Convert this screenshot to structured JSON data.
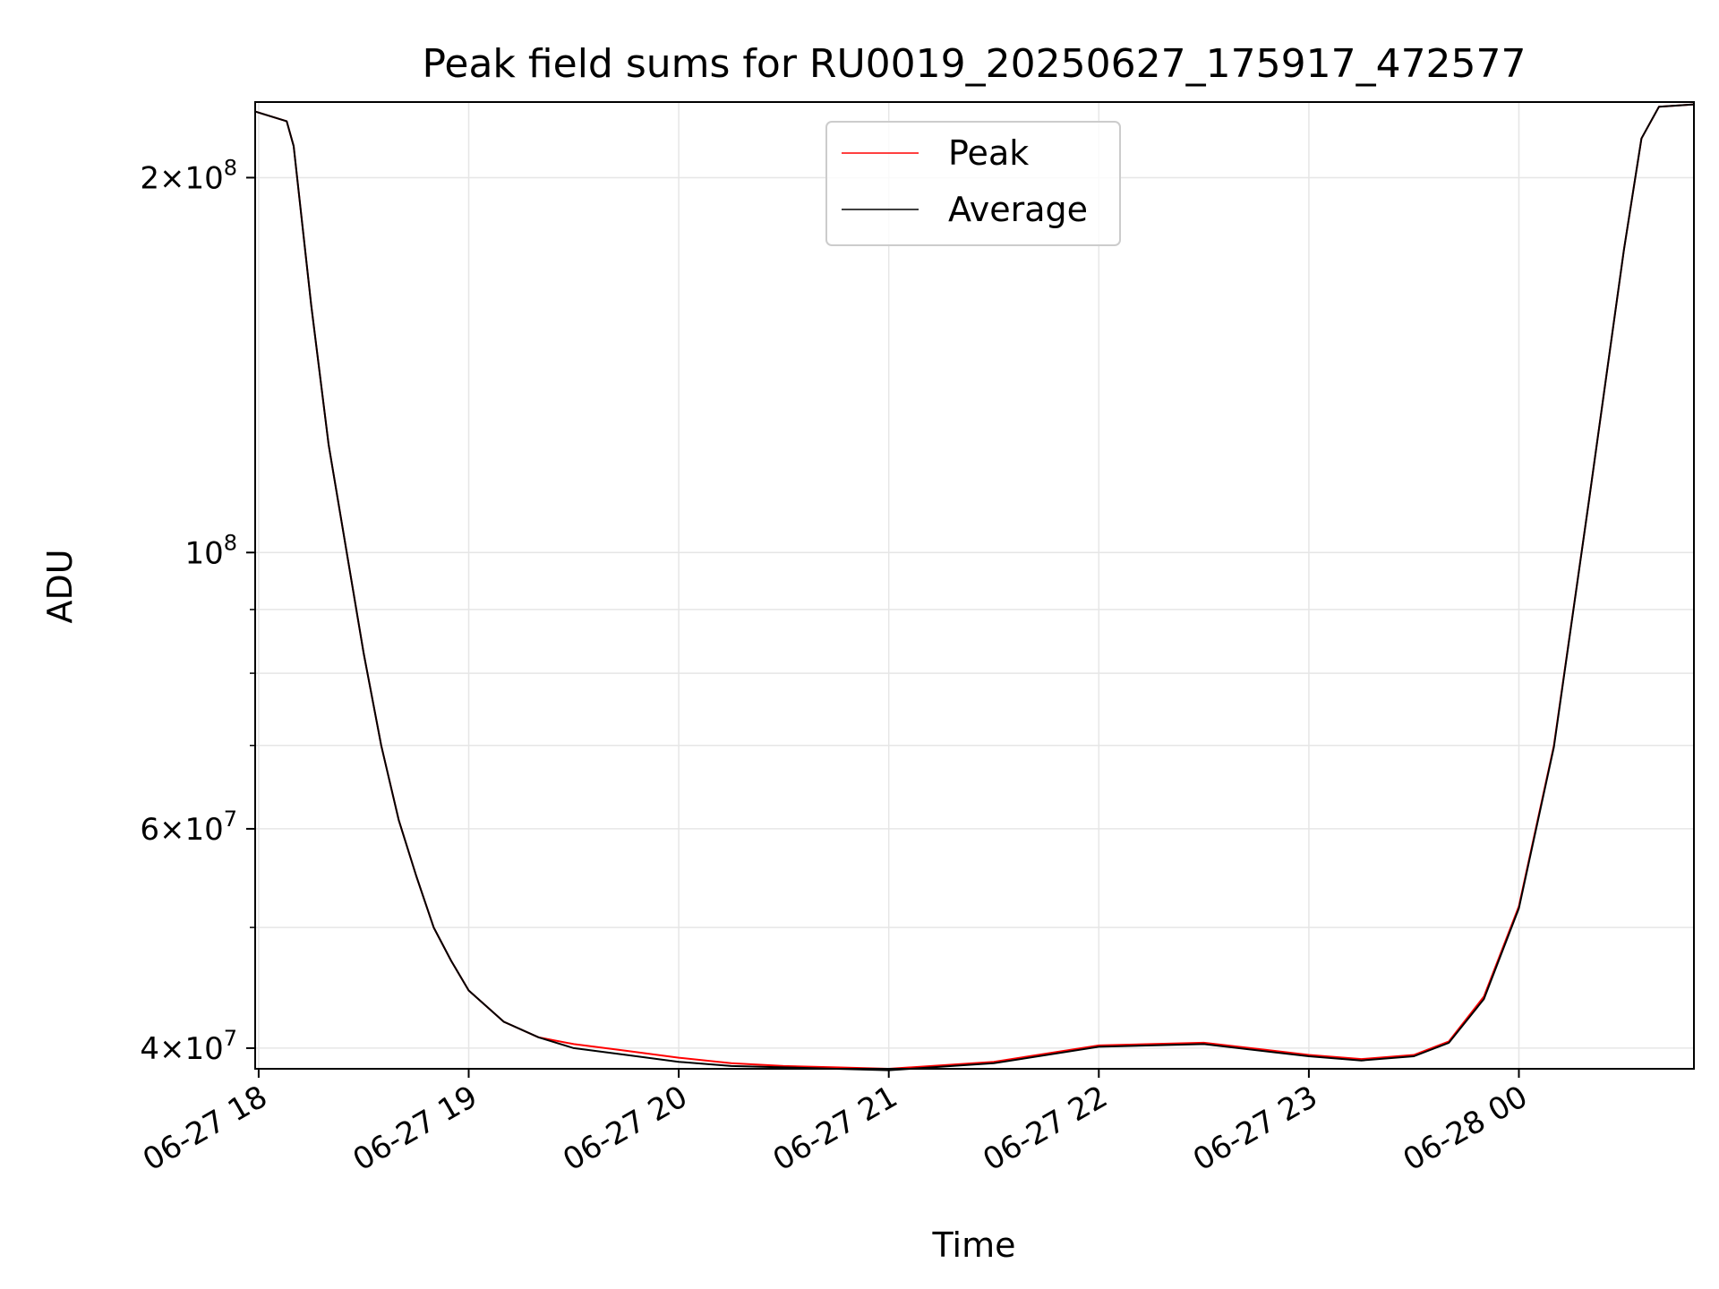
{
  "chart_data": {
    "type": "line",
    "title": "Peak field sums for RU0019_20250627_175917_472577",
    "xlabel": "Time",
    "ylabel": "ADU",
    "y_scale": "log",
    "xlim": [
      "2025-06-27T17:59",
      "2025-06-28T00:50"
    ],
    "ylim": [
      38500000,
      230000000
    ],
    "grid": true,
    "legend_position": "upper center",
    "x_ticks": [
      "06-27 18",
      "06-27 19",
      "06-27 20",
      "06-27 21",
      "06-27 22",
      "06-27 23",
      "06-28 00"
    ],
    "y_tick_labels": [
      {
        "value": 40000000,
        "mant": "4",
        "exp": "7"
      },
      {
        "value": 60000000,
        "mant": "6",
        "exp": "7"
      },
      {
        "value": 100000000,
        "mant": "",
        "exp": "8"
      },
      {
        "value": 200000000,
        "mant": "2",
        "exp": "8"
      }
    ],
    "y_minor_gridlines": [
      50000000,
      70000000,
      80000000,
      90000000
    ],
    "colors": {
      "peak": "#ff0000",
      "average": "#000000",
      "grid": "#e6e6e6"
    },
    "series": [
      {
        "name": "Peak",
        "color": "#ff0000",
        "x": [
          "2025-06-27T17:59",
          "2025-06-27T18:08",
          "2025-06-27T18:10",
          "2025-06-27T18:15",
          "2025-06-27T18:20",
          "2025-06-27T18:30",
          "2025-06-27T18:35",
          "2025-06-27T18:40",
          "2025-06-27T18:45",
          "2025-06-27T18:50",
          "2025-06-27T18:55",
          "2025-06-27T19:00",
          "2025-06-27T19:10",
          "2025-06-27T19:20",
          "2025-06-27T19:30",
          "2025-06-27T19:45",
          "2025-06-27T20:00",
          "2025-06-27T20:15",
          "2025-06-27T20:30",
          "2025-06-27T20:45",
          "2025-06-27T21:00",
          "2025-06-27T21:30",
          "2025-06-27T22:00",
          "2025-06-27T22:30",
          "2025-06-27T22:50",
          "2025-06-27T23:00",
          "2025-06-27T23:15",
          "2025-06-27T23:30",
          "2025-06-27T23:40",
          "2025-06-27T23:50",
          "2025-06-28T00:00",
          "2025-06-28T00:10",
          "2025-06-28T00:20",
          "2025-06-28T00:30",
          "2025-06-28T00:35",
          "2025-06-28T00:40",
          "2025-06-28T00:50"
        ],
        "y": [
          226000000,
          222000000,
          212000000,
          158000000,
          122000000,
          83000000,
          70000000,
          61000000,
          55000000,
          50000000,
          47000000,
          44500000,
          42000000,
          40800000,
          40300000,
          39800000,
          39300000,
          38900000,
          38700000,
          38600000,
          38500000,
          39000000,
          40200000,
          40400000,
          39800000,
          39500000,
          39200000,
          39500000,
          40500000,
          44000000,
          52000000,
          70000000,
          110000000,
          175000000,
          215000000,
          228000000,
          229000000
        ]
      },
      {
        "name": "Average",
        "color": "#000000",
        "x": [
          "2025-06-27T17:59",
          "2025-06-27T18:08",
          "2025-06-27T18:10",
          "2025-06-27T18:15",
          "2025-06-27T18:20",
          "2025-06-27T18:30",
          "2025-06-27T18:35",
          "2025-06-27T18:40",
          "2025-06-27T18:45",
          "2025-06-27T18:50",
          "2025-06-27T18:55",
          "2025-06-27T19:00",
          "2025-06-27T19:10",
          "2025-06-27T19:20",
          "2025-06-27T19:30",
          "2025-06-27T19:45",
          "2025-06-27T20:00",
          "2025-06-27T20:15",
          "2025-06-27T20:30",
          "2025-06-27T20:45",
          "2025-06-27T21:00",
          "2025-06-27T21:30",
          "2025-06-27T22:00",
          "2025-06-27T22:30",
          "2025-06-27T22:50",
          "2025-06-27T23:00",
          "2025-06-27T23:15",
          "2025-06-27T23:30",
          "2025-06-27T23:40",
          "2025-06-27T23:50",
          "2025-06-28T00:00",
          "2025-06-28T00:10",
          "2025-06-28T00:20",
          "2025-06-28T00:30",
          "2025-06-28T00:35",
          "2025-06-28T00:40",
          "2025-06-28T00:50"
        ],
        "y": [
          226000000,
          222000000,
          212000000,
          158000000,
          122000000,
          83000000,
          70000000,
          61000000,
          55000000,
          50000000,
          47000000,
          44500000,
          42000000,
          40800000,
          40000000,
          39500000,
          39000000,
          38700000,
          38600000,
          38500000,
          38400000,
          38900000,
          40100000,
          40300000,
          39700000,
          39400000,
          39100000,
          39400000,
          40400000,
          43800000,
          51800000,
          69800000,
          110000000,
          175000000,
          215000000,
          228000000,
          229000000
        ]
      }
    ]
  }
}
